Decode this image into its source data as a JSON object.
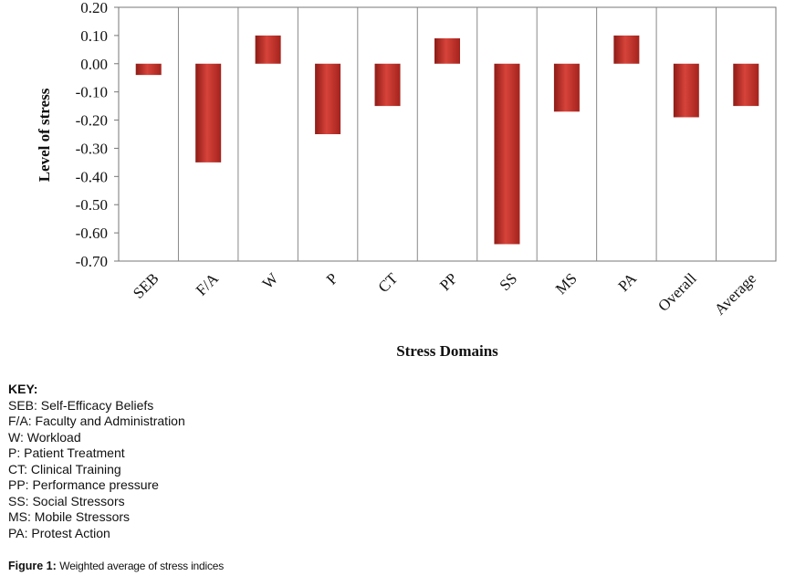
{
  "chart_data": {
    "type": "bar",
    "categories": [
      "SEB",
      "F/A",
      "W",
      "P",
      "CT",
      "PP",
      "SS",
      "MS",
      "PA",
      "Overall",
      "Average"
    ],
    "values": [
      -0.04,
      -0.35,
      0.1,
      -0.25,
      -0.15,
      0.09,
      -0.64,
      -0.17,
      0.1,
      -0.19,
      -0.15
    ],
    "ylim": [
      -0.7,
      0.2
    ],
    "yticks": [
      "0.20",
      "0.10",
      "0.00",
      "-0.10",
      "-0.20",
      "-0.30",
      "-0.40",
      "-0.50",
      "-0.60",
      "-0.70"
    ],
    "ytick_values": [
      0.2,
      0.1,
      0.0,
      -0.1,
      -0.2,
      -0.3,
      -0.4,
      -0.5,
      -0.6,
      -0.7
    ],
    "ylabel": "Level of stress",
    "xlabel": "Stress Domains",
    "bar_color": "#c0302b",
    "grid": "vertical category separators"
  },
  "key": {
    "title": "KEY:",
    "items": [
      "SEB: Self-Efficacy Beliefs",
      "F/A: Faculty and Administration",
      "W: Workload",
      "P: Patient Treatment",
      "CT: Clinical Training",
      "PP: Performance pressure",
      "SS: Social Stressors",
      "MS: Mobile Stressors",
      "PA: Protest Action"
    ]
  },
  "caption": {
    "label": "Figure 1:",
    "text": "Weighted average of stress indices"
  }
}
